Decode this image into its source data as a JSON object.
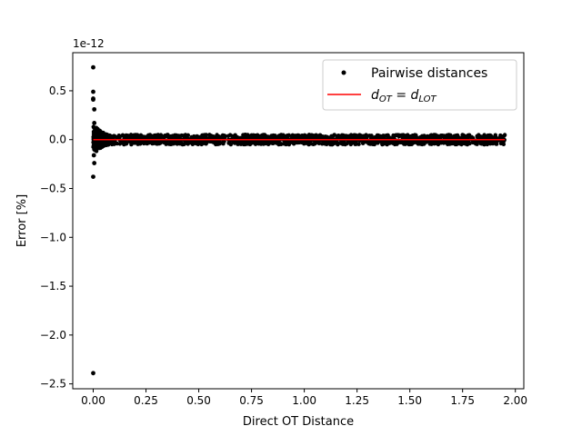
{
  "chart_data": {
    "type": "scatter",
    "title": "",
    "xlabel": "Direct OT Distance",
    "ylabel": "Error [%]",
    "y_offset_label": "1e-12",
    "xlim": [
      -0.097,
      2.04
    ],
    "ylim": [
      -2.55,
      0.89
    ],
    "x_ticks": [
      0.0,
      0.25,
      0.5,
      0.75,
      1.0,
      1.25,
      1.5,
      1.75,
      2.0
    ],
    "x_tick_labels": [
      "0.00",
      "0.25",
      "0.50",
      "0.75",
      "1.00",
      "1.25",
      "1.50",
      "1.75",
      "2.00"
    ],
    "y_ticks": [
      -2.5,
      -2.0,
      -1.5,
      -1.0,
      -0.5,
      0.0,
      0.5
    ],
    "y_tick_labels": [
      "−2.5",
      "−2.0",
      "−1.5",
      "−1.0",
      "−0.5",
      "0.0",
      "0.5"
    ],
    "grid": false,
    "legend_position": "top-right",
    "legend": {
      "scatter_label": "Pairwise distances",
      "line_label": {
        "var": "d",
        "sub1": "OT",
        "eq": " = ",
        "var2": "d",
        "sub2": "LOT"
      }
    },
    "series": [
      {
        "name": "Pairwise distances",
        "kind": "scatter",
        "color": "#000000",
        "x_range": [
          0.0,
          1.95
        ],
        "y_band": [
          -0.05,
          0.05
        ],
        "outliers": [
          {
            "x": 0.0,
            "y": 0.74
          },
          {
            "x": 0.0,
            "y": 0.49
          },
          {
            "x": 0.0,
            "y": 0.42
          },
          {
            "x": 0.0,
            "y": 0.41
          },
          {
            "x": 0.005,
            "y": 0.31
          },
          {
            "x": 0.005,
            "y": 0.17
          },
          {
            "x": 0.005,
            "y": 0.12
          },
          {
            "x": 0.01,
            "y": 0.1
          },
          {
            "x": 0.003,
            "y": 0.08
          },
          {
            "x": 0.005,
            "y": -0.1
          },
          {
            "x": 0.003,
            "y": -0.16
          },
          {
            "x": 0.005,
            "y": -0.24
          },
          {
            "x": 0.0,
            "y": -0.38
          },
          {
            "x": 0.0,
            "y": -2.39
          },
          {
            "x": 0.015,
            "y": 0.07
          },
          {
            "x": 0.02,
            "y": -0.07
          },
          {
            "x": 0.03,
            "y": 0.06
          },
          {
            "x": 0.04,
            "y": -0.06
          },
          {
            "x": 0.05,
            "y": 0.05
          },
          {
            "x": 0.07,
            "y": -0.05
          },
          {
            "x": 0.34,
            "y": 0.04
          },
          {
            "x": 0.72,
            "y": 0.05
          },
          {
            "x": 0.41,
            "y": -0.04
          },
          {
            "x": 1.33,
            "y": -0.04
          }
        ]
      },
      {
        "name": "dOT = dLOT",
        "kind": "line",
        "color": "#ff0000",
        "x": [
          0.0,
          1.95
        ],
        "y": [
          0.0,
          0.0
        ]
      }
    ]
  }
}
